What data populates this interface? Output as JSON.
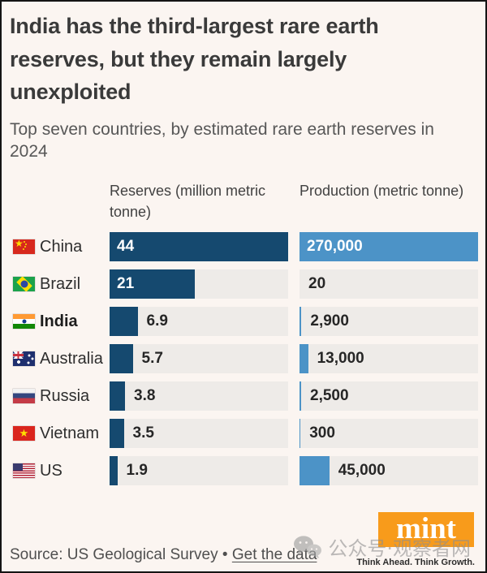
{
  "title": "India has the third-largest rare earth reserves, but they remain largely unexploited",
  "subtitle": "Top seven countries, by estimated rare earth reserves in 2024",
  "columns": {
    "reserves_header": "Reserves (million metric tonne)",
    "production_header": "Production (metric tonne)"
  },
  "chart_data": {
    "type": "bar",
    "orientation": "horizontal",
    "title": "India has the third-largest rare earth reserves, but they remain largely unexploited",
    "subtitle": "Top seven countries, by estimated rare earth reserves in 2024",
    "categories": [
      "China",
      "Brazil",
      "India",
      "Australia",
      "Russia",
      "Vietnam",
      "US"
    ],
    "flags": [
      "cn",
      "br",
      "in",
      "au",
      "ru",
      "vn",
      "us"
    ],
    "highlight_category": "India",
    "grid": false,
    "series": [
      {
        "name": "Reserves (million metric tonne)",
        "values": [
          44,
          21,
          6.9,
          5.7,
          3.8,
          3.5,
          1.9
        ],
        "display_labels": [
          "44",
          "21",
          "6.9",
          "5.7",
          "3.8",
          "3.5",
          "1.9"
        ],
        "axis_max": 44,
        "bar_color": "#15496f",
        "label_inside": [
          true,
          true,
          false,
          false,
          false,
          false,
          false
        ]
      },
      {
        "name": "Production (metric tonne)",
        "values": [
          270000,
          20,
          2900,
          13000,
          2500,
          300,
          45000
        ],
        "display_labels": [
          "270,000",
          "20",
          "2,900",
          "13,000",
          "2,500",
          "300",
          "45,000"
        ],
        "axis_max": 270000,
        "bar_color": "#4c93c7",
        "label_inside": [
          true,
          false,
          false,
          false,
          false,
          false,
          false
        ]
      }
    ]
  },
  "footer": {
    "source": "Source: US Geological Survey",
    "bullet": "•",
    "link_label": "Get the data",
    "logo_text": "mint",
    "tagline": "Think Ahead. Think Growth."
  },
  "watermark": {
    "text": "公众号·观察者网"
  },
  "colors": {
    "page_bg": "#fbf5f1",
    "track_bg": "#eeebe8",
    "reserves_bar": "#15496f",
    "production_bar": "#4c93c7",
    "logo_bg": "#f89b1b",
    "title_text": "#3a3a3a"
  }
}
